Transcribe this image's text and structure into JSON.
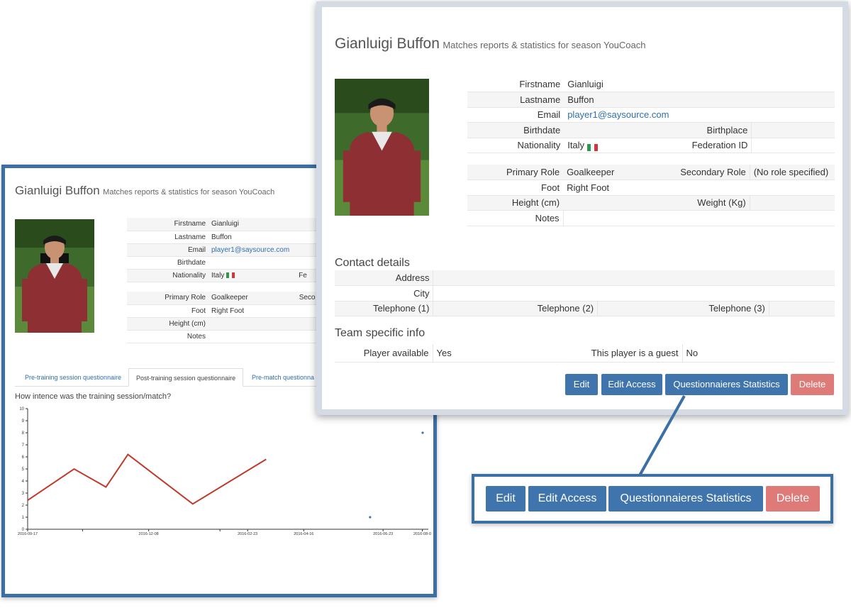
{
  "player": {
    "name": "Gianluigi Buffon",
    "subtitle": "Matches reports & statistics for season YouCoach"
  },
  "profile": {
    "firstname_label": "Firstname",
    "firstname": "Gianluigi",
    "lastname_label": "Lastname",
    "lastname": "Buffon",
    "email_label": "Email",
    "email": "player1@saysource.com",
    "birthdate_label": "Birthdate",
    "birthdate": "",
    "birthplace_label": "Birthplace",
    "birthplace": "",
    "nationality_label": "Nationality",
    "nationality": "Italy",
    "federation_label": "Federation ID",
    "federation_id": "",
    "primary_role_label": "Primary Role",
    "primary_role": "Goalkeeper",
    "secondary_role_label": "Secondary Role",
    "secondary_role": "(No role specified)",
    "foot_label": "Foot",
    "foot": "Right Foot",
    "height_label": "Height (cm)",
    "height": "",
    "weight_label": "Weight (Kg)",
    "weight": "",
    "notes_label": "Notes",
    "notes": ""
  },
  "back_window": {
    "federation_label_cut": "Fe",
    "secondary_role_label_cut": "Seco"
  },
  "contact": {
    "heading": "Contact details",
    "address_label": "Address",
    "city_label": "City",
    "tel1_label": "Telephone (1)",
    "tel2_label": "Telephone (2)",
    "tel3_label": "Telephone (3)"
  },
  "team_info": {
    "heading": "Team specific info",
    "available_label": "Player available",
    "available": "Yes",
    "guest_label": "This player is a guest",
    "guest": "No"
  },
  "buttons": {
    "edit": "Edit",
    "edit_access": "Edit Access",
    "questionnaire_stats": "Questionnaieres Statistics",
    "delete": "Delete"
  },
  "tabs": [
    {
      "label": "Pre-training session questionnaire",
      "active": false
    },
    {
      "label": "Post-training session questionnaire",
      "active": true
    },
    {
      "label": "Pre-match questionna",
      "active": false
    }
  ],
  "colors": {
    "primary_button": "#3f74ad",
    "danger_button": "#de7b79",
    "frame_blue": "#3b6fa6",
    "series_line": "#c0392b",
    "series_points": "#3f74ad"
  },
  "chart_data": {
    "type": "line",
    "title": "How intence was the training session/match?",
    "xlabel": "",
    "ylabel": "",
    "ylim": [
      0,
      10
    ],
    "yticks": [
      "0",
      "1",
      "2",
      "3",
      "4",
      "5",
      "6",
      "7",
      "8",
      "9",
      "10"
    ],
    "xtick_labels": [
      "2016-09-17",
      "2016-12-08",
      "2016-02-23",
      "2016-04-16",
      "2016-06-23",
      "2016-08-0"
    ],
    "series": [
      {
        "style": "line",
        "values": [
          {
            "x": "2015-09-17",
            "y": 2.4
          },
          {
            "x": "2015-10-25",
            "y": 5.0
          },
          {
            "x": "2015-11-20",
            "y": 3.5
          },
          {
            "x": "2015-12-08",
            "y": 6.2
          },
          {
            "x": "2016-01-30",
            "y": 2.1
          },
          {
            "x": "2016-03-30",
            "y": 5.8
          }
        ]
      },
      {
        "style": "points",
        "values": [
          {
            "x": "2016-06-23",
            "y": 1.0
          },
          {
            "x": "2016-08-05",
            "y": 8.0
          }
        ]
      }
    ]
  }
}
